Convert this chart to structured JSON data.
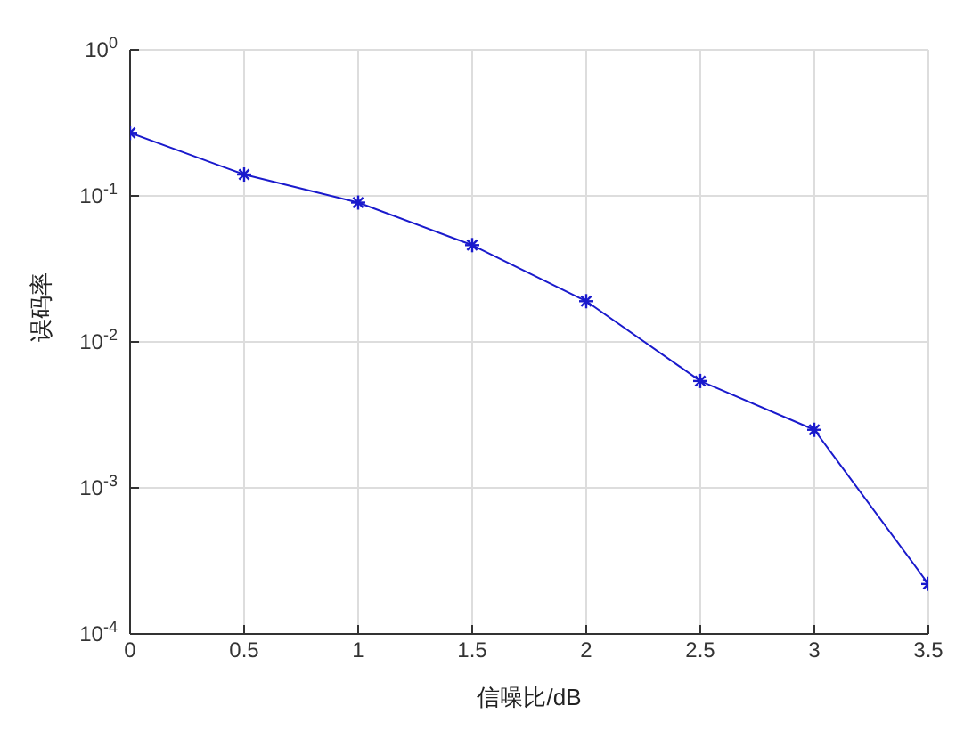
{
  "chart_data": {
    "type": "line",
    "xlabel": "信噪比/dB",
    "ylabel": "误码率",
    "x": [
      0,
      0.5,
      1,
      1.5,
      2,
      2.5,
      3,
      3.5
    ],
    "series": [
      {
        "color": "#1a1acc",
        "values": [
          0.27,
          0.14,
          0.09,
          0.046,
          0.019,
          0.0054,
          0.0025,
          0.00022
        ]
      }
    ],
    "xlim": [
      0,
      3.5
    ],
    "xticks": [
      0,
      0.5,
      1,
      1.5,
      2,
      2.5,
      3,
      3.5
    ],
    "ylim": [
      0.0001,
      1
    ],
    "yticks": [
      {
        "value": 0.0001,
        "label": "10$^{-4}$"
      },
      {
        "value": 0.001,
        "label": "10$^{-3}$"
      },
      {
        "value": 0.01,
        "label": "10$^{-2}$"
      },
      {
        "value": 0.1,
        "label": "10$^{-1}$"
      },
      {
        "value": 1,
        "label": "10$^{0}$"
      }
    ],
    "log": "y",
    "grid": true,
    "marker": "cross",
    "line_style": "solid",
    "legend": false
  }
}
